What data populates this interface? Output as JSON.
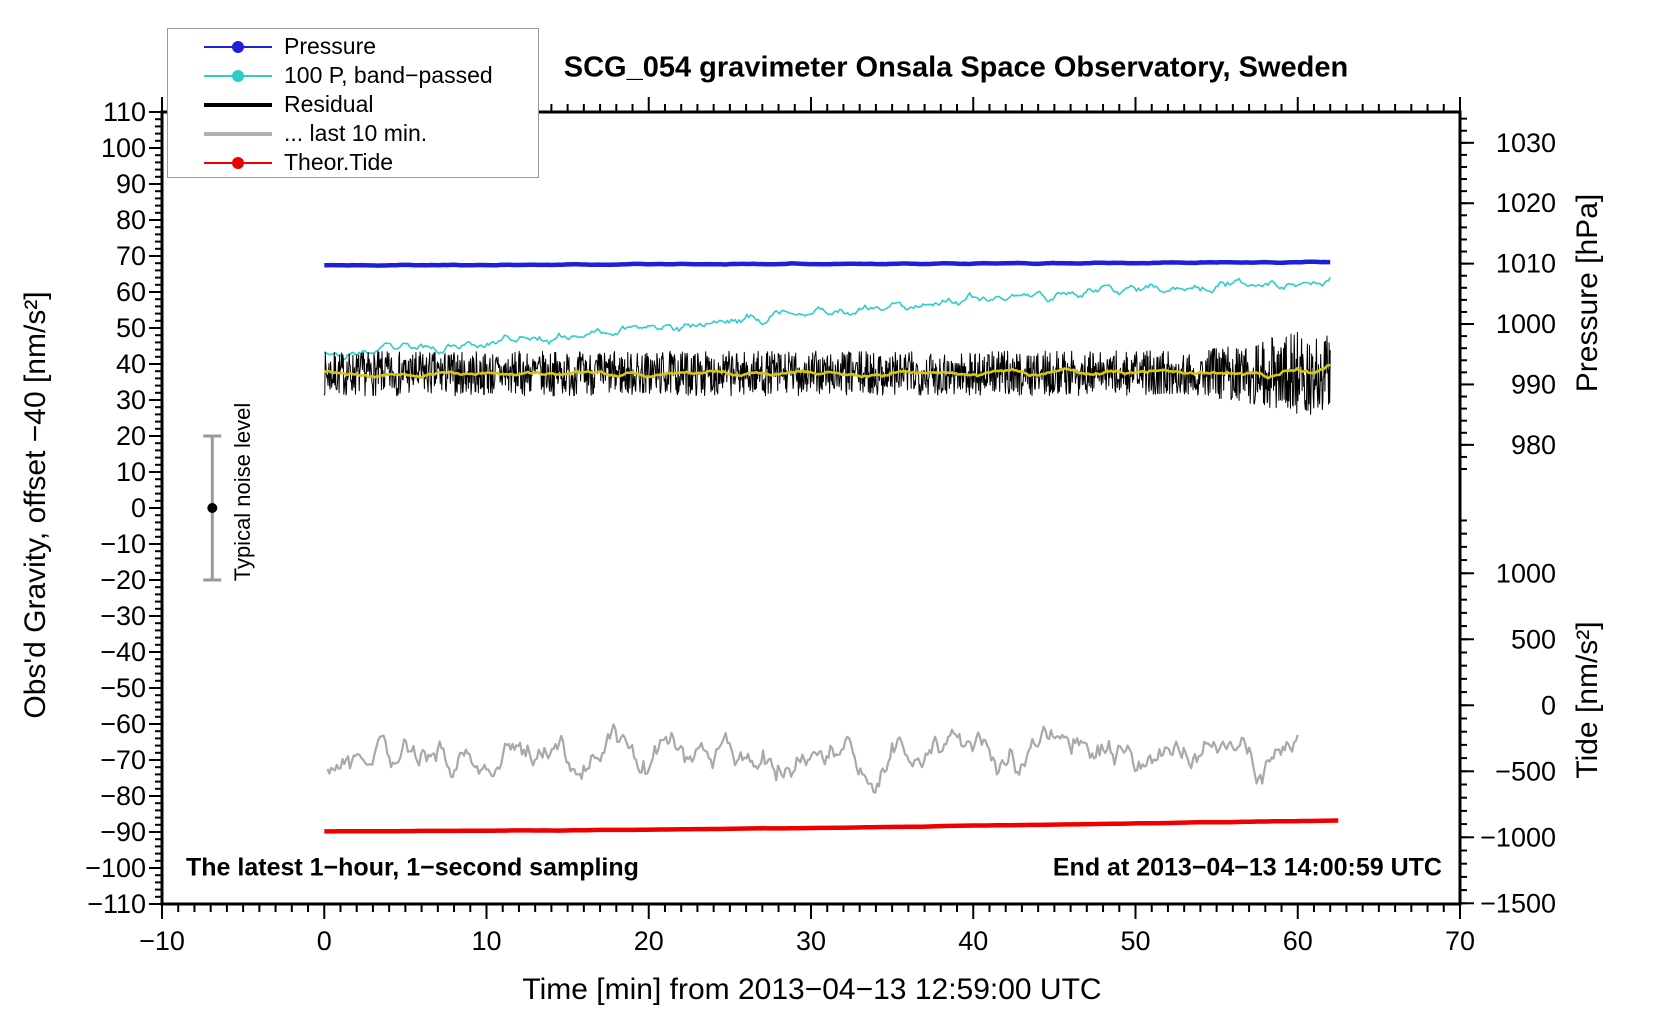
{
  "header": {
    "title": "SCG_054 gravimeter Onsala Space Observatory, Sweden"
  },
  "annotations": {
    "sampling": "The latest 1−hour, 1−second sampling",
    "end_time": "End at 2013−04−13 14:00:59 UTC",
    "noise_label": "Typical noise level"
  },
  "legend": {
    "entries": [
      {
        "label": "Pressure",
        "color": "#1f1fd9",
        "line_width": 2,
        "dot": true
      },
      {
        "label": "100 P, band−passed",
        "color": "#2ecccc",
        "line_width": 2,
        "dot": true
      },
      {
        "label": "Residual",
        "color": "#000000",
        "line_width": 4,
        "dot": false
      },
      {
        "label": "... last 10 min.",
        "color": "#b0b0b0",
        "line_width": 4,
        "dot": false
      },
      {
        "label": "Theor.Tide",
        "color": "#ee0000",
        "line_width": 2,
        "dot": true
      }
    ]
  },
  "chart_data": {
    "type": "line",
    "title": "SCG_054 gravimeter Onsala Space Observatory, Sweden",
    "xlabel": "Time [min] from 2013−04−13 12:59:00 UTC",
    "grid": false,
    "legend_position": "top-left",
    "axes": {
      "x": {
        "title": "Time [min] from 2013−04−13 12:59:00 UTC",
        "min": -10,
        "max": 70,
        "major": 10,
        "minor": 1
      },
      "left": {
        "title": "Obs'd Gravity, offset −40 [nm/s²]",
        "min": -110,
        "max": 110,
        "major": 10,
        "minor": 2
      },
      "pressure": {
        "title": "Pressure [hPa]",
        "unit_anchor_value": 1000,
        "unit_anchor_u": 51.1,
        "u_per_value": 1.678,
        "majors": [
          1030,
          1020,
          1010,
          1000,
          990,
          980
        ],
        "minor_step": 2,
        "minor_min": 976,
        "minor_max": 1034
      },
      "tide": {
        "title": "Tide [nm/s²]",
        "unit_anchor_value": 0,
        "unit_anchor_u": -54.8,
        "u_per_value": 0.03667,
        "majors": [
          1000,
          500,
          0,
          -500,
          -1000,
          -1500
        ],
        "minor_step": 100,
        "minor_min": -1500,
        "minor_max": 1400
      }
    },
    "noise_bar": {
      "t": -6.9,
      "center": 0,
      "half_range": 20,
      "color": "#999999",
      "dot_color": "#000000"
    },
    "series": [
      {
        "name": "residual_last_10_min",
        "color": "#a9a9a9",
        "width": 2.2,
        "t_start": 0.2,
        "t_end": 60,
        "n": 520,
        "seed": 59,
        "smooth": 3,
        "amp": 15,
        "anchors_t": [
          0,
          60
        ],
        "anchors_y": [
          -68.2,
          -68.4
        ]
      },
      {
        "name": "theor_tide",
        "color": "#ee0000",
        "width": 4.5,
        "t_start": 0,
        "t_end": 62.5,
        "n": 140,
        "seed": 3,
        "smooth": 2,
        "amp": 0.12,
        "anchors_t": [
          0,
          8,
          16,
          24,
          32,
          40,
          50,
          62.5
        ],
        "anchors_y": [
          -89.8,
          -89.7,
          -89.5,
          -89.2,
          -88.8,
          -88.3,
          -87.6,
          -86.8
        ]
      },
      {
        "name": "band_passed",
        "color": "#2ecccc",
        "width": 1.6,
        "t_start": 0,
        "t_end": 62,
        "n": 520,
        "seed": 23,
        "smooth": 2,
        "amp": 3,
        "anchors_t": [
          0,
          1,
          3,
          5,
          8,
          12,
          16,
          20,
          24,
          28,
          32,
          36,
          40,
          44,
          48,
          52,
          56,
          59,
          62
        ],
        "anchors_y": [
          44.8,
          41.8,
          43.5,
          44.3,
          45.0,
          46.5,
          48.5,
          50.0,
          51.5,
          53.5,
          55.0,
          56.5,
          57.8,
          59.0,
          60.0,
          61.0,
          61.8,
          62.3,
          63.3
        ]
      },
      {
        "name": "residual",
        "color": "#000000",
        "width": 1,
        "t_start": 0,
        "t_end": 62,
        "n": 1900,
        "seed": 7,
        "smooth": 0,
        "amp_t": [
          0,
          54,
          57,
          60,
          62
        ],
        "amp_y": [
          6.2,
          6.2,
          8.5,
          11.5,
          11.5
        ],
        "anchors_t": [
          0,
          62
        ],
        "anchors_y": [
          37.3,
          37.5
        ]
      },
      {
        "name": "residual_smoothed",
        "color": "#d4c613",
        "width": 2.6,
        "t_start": 0,
        "t_end": 62,
        "n": 520,
        "seed": 41,
        "smooth": 4,
        "amp_t": [
          0,
          55,
          58,
          62
        ],
        "amp_y": [
          2.2,
          2.2,
          3.2,
          3.8
        ],
        "anchors_t": [
          0,
          62
        ],
        "anchors_y": [
          37.2,
          37.6
        ]
      },
      {
        "name": "pressure",
        "color": "#1f1fd9",
        "width": 4.5,
        "t_start": 0,
        "t_end": 62,
        "n": 320,
        "seed": 11,
        "smooth": 2,
        "amp": 0.25,
        "anchors_t": [
          0,
          10,
          20,
          30,
          40,
          50,
          62
        ],
        "anchors_y": [
          67.4,
          67.5,
          67.7,
          67.8,
          67.9,
          68.1,
          68.3
        ]
      }
    ]
  }
}
